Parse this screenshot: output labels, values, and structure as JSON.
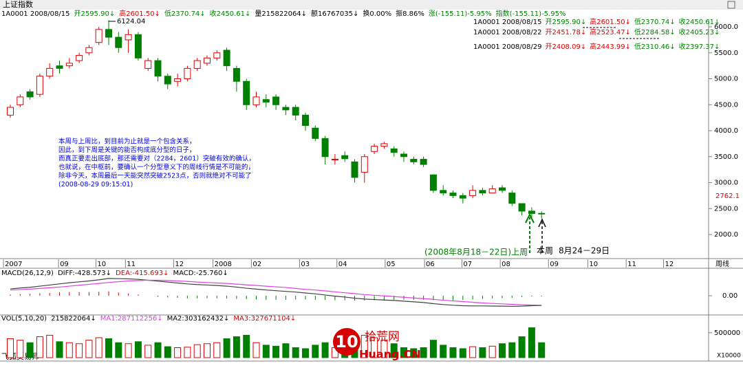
{
  "chart_data": {
    "type": "candlestick",
    "title": "上证指数",
    "header": [
      {
        "text": "1A0001 2008/08/15",
        "color": "#000000"
      },
      {
        "text": "开2595.90↓",
        "color": "#008000"
      },
      {
        "text": "高2601.50↓",
        "color": "#e00000"
      },
      {
        "text": "低2370.74↓",
        "color": "#008000"
      },
      {
        "text": "收2450.61↓",
        "color": "#008000"
      },
      {
        "text": "量215822064↓",
        "color": "#000000"
      },
      {
        "text": "额16767035↓",
        "color": "#000000"
      },
      {
        "text": "换0.00%",
        "color": "#000000"
      },
      {
        "text": "振8.86%",
        "color": "#000000"
      },
      {
        "text": "涨(-155.11)-5.95%",
        "color": "#008000"
      },
      {
        "text": "指数(-155.11)-5.95%",
        "color": "#008000"
      }
    ],
    "info_rows": [
      [
        {
          "text": "1A0001 2008/08/15",
          "color": "#000000"
        },
        {
          "text": "开2595.90↓",
          "color": "#008000"
        },
        {
          "text": "高2601.50↓",
          "color": "#e00000"
        },
        {
          "text": "低2370.74↓",
          "color": "#008000"
        },
        {
          "text": "收2450.61↓",
          "color": "#008000"
        }
      ],
      [
        {
          "text": "1A0001 2008/08/22",
          "color": "#000000"
        },
        {
          "text": "开2451.78↓",
          "color": "#e00000"
        },
        {
          "text": "高2523.47↓",
          "color": "#e00000"
        },
        {
          "text": "低2284.58↓",
          "color": "#008000"
        },
        {
          "text": "收2405.23↓",
          "color": "#008000"
        }
      ],
      [
        {
          "text": "1A0001 2008/08/29",
          "color": "#000000"
        },
        {
          "text": "开2408.09↓",
          "color": "#e00000"
        },
        {
          "text": "高2443.99↓",
          "color": "#e00000"
        },
        {
          "text": "低2310.46↓",
          "color": "#008000"
        },
        {
          "text": "收2397.37↓",
          "color": "#008000"
        }
      ]
    ],
    "categories": [
      null,
      null,
      null,
      null,
      null,
      null,
      null,
      null,
      null,
      null,
      null,
      null,
      null,
      null,
      null,
      null,
      null,
      null,
      null,
      null,
      null,
      null,
      null,
      null,
      null,
      null,
      null,
      null,
      null,
      null,
      null,
      null,
      null,
      null,
      null,
      null,
      null,
      null,
      null,
      null,
      null,
      null,
      null,
      null,
      null,
      null,
      null,
      null,
      null,
      null,
      null,
      null,
      null,
      null,
      null
    ],
    "open": [
      4300,
      4500,
      4750,
      4700,
      5050,
      5250,
      5250,
      5350,
      5500,
      5700,
      5950,
      5800,
      5750,
      5850,
      5200,
      5350,
      5050,
      4950,
      5000,
      5200,
      5300,
      5400,
      5550,
      5200,
      4950,
      4500,
      4600,
      4650,
      4450,
      4450,
      4300,
      4050,
      3850,
      3450,
      3520,
      3400,
      3200,
      3600,
      3700,
      3650,
      3550,
      3450,
      3450,
      3150,
      2850,
      2800,
      2750,
      2750,
      2850,
      2800,
      2900,
      2800,
      2595.9,
      2451.78,
      2408.09
    ],
    "high": [
      4500,
      4700,
      4800,
      5100,
      5300,
      5350,
      5400,
      5500,
      5650,
      6000,
      6124.04,
      5900,
      5950,
      5900,
      5400,
      5400,
      5100,
      5100,
      5250,
      5400,
      5450,
      5550,
      5600,
      5250,
      5000,
      4750,
      4700,
      4700,
      4500,
      4500,
      4350,
      4100,
      3900,
      3550,
      3600,
      3450,
      3550,
      3750,
      3786,
      3700,
      3600,
      3500,
      3500,
      3150,
      2950,
      2850,
      2800,
      2950,
      2900,
      2950,
      2950,
      2850,
      2601.5,
      2523.47,
      2443.99
    ],
    "low": [
      4250,
      4450,
      4600,
      4650,
      5000,
      5100,
      5200,
      5300,
      5450,
      5650,
      5650,
      5500,
      5500,
      5350,
      5150,
      4950,
      4800,
      4850,
      4950,
      5150,
      5250,
      5350,
      5150,
      4750,
      4400,
      4450,
      4450,
      4400,
      4300,
      4200,
      4000,
      3800,
      3350,
      3350,
      3400,
      3000,
      3000,
      3550,
      3650,
      3500,
      3400,
      3350,
      3300,
      2800,
      2750,
      2700,
      2600,
      2700,
      2750,
      2800,
      2800,
      2550,
      2370.74,
      2284.58,
      2310.46
    ],
    "close": [
      4450,
      4650,
      4650,
      5050,
      5200,
      5200,
      5300,
      5450,
      5600,
      5950,
      5800,
      5600,
      5850,
      5400,
      5350,
      5050,
      4900,
      5000,
      5200,
      5350,
      5400,
      5500,
      5250,
      4950,
      4500,
      4650,
      4550,
      4500,
      4400,
      4300,
      4100,
      3850,
      3500,
      3450,
      3460,
      3100,
      3500,
      3700,
      3750,
      3580,
      3500,
      3400,
      3350,
      2850,
      2800,
      2750,
      2700,
      2850,
      2800,
      2880,
      2850,
      2600,
      2450.61,
      2405.23,
      2397.37
    ],
    "up_color": "#e00000",
    "down_color": "#008000",
    "ylim": [
      1550,
      6146
    ],
    "yticks": [
      {
        "value": 2000,
        "label": "2000.0"
      },
      {
        "value": 2500,
        "label": "2500.0"
      },
      {
        "value": 3000,
        "label": "3000.0"
      },
      {
        "value": 3500,
        "label": "3500.0"
      },
      {
        "value": 4000,
        "label": "4000.0"
      },
      {
        "value": 4500,
        "label": "4500.0"
      },
      {
        "value": 5000,
        "label": "5000.0"
      },
      {
        "value": 5500,
        "label": "5500.0"
      },
      {
        "value": 6000,
        "label": "6000.0"
      }
    ],
    "xticks": [
      {
        "value": -0.7,
        "label": "2007"
      },
      {
        "value": 4.9,
        "label": "09"
      },
      {
        "value": 8.7,
        "label": "10"
      },
      {
        "value": 11.7,
        "label": "11"
      },
      {
        "value": 16.6,
        "label": "12"
      },
      {
        "value": 20.6,
        "label": "2008"
      },
      {
        "value": 24.5,
        "label": "02"
      },
      {
        "value": 29.4,
        "label": "03"
      },
      {
        "value": 33.2,
        "label": "04"
      },
      {
        "value": 38.1,
        "label": "05"
      },
      {
        "value": 42.1,
        "label": "06"
      },
      {
        "value": 45.9,
        "label": "07"
      },
      {
        "value": 49.8,
        "label": "08"
      },
      {
        "value": 54.7,
        "label": "09"
      },
      {
        "value": 58.7,
        "label": "10"
      },
      {
        "value": 62.6,
        "label": "11"
      },
      {
        "value": 66.4,
        "label": "12"
      }
    ],
    "period_label": "周线",
    "grid": false,
    "peak_label": "6124.04",
    "last_price_label": "2762.1",
    "note_lines": [
      "本周与上周比，到目前为止就是一个包含关系，",
      "因此，到下周是关键的能否构成底分型的日子，",
      "而真正要走出底部，那还需要对（2284，2601）突破有效的确认，",
      "也就说，在中枢前，要确认一个分型意义下的周线行情是不可能的，",
      "除非今天，本周最后一天能突然突破2523点，否则就绝对不可能了",
      "(2008-08-29 09:15:01)"
    ],
    "last_week_label": "(2008年8月18－22日)上周",
    "this_week_label": "本周",
    "this_week_dates": "8月24－29日",
    "macd": {
      "header": [
        {
          "text": "MACD(26,12,9)",
          "color": "#000000"
        },
        {
          "text": "DIFF:-428.573↓",
          "color": "#000000"
        },
        {
          "text": "DEA:-415.693↓",
          "color": "#e00000"
        },
        {
          "text": "MACD:-25.760↓",
          "color": "#000000"
        }
      ],
      "ylim": [
        -850,
        1150
      ],
      "yticks": [
        {
          "value": 0,
          "label": "0.00"
        }
      ],
      "series": [
        {
          "name": "DIFF",
          "color": "#404040",
          "values": [
            300,
            340,
            370,
            420,
            470,
            520,
            570,
            610,
            650,
            700,
            760,
            750,
            740,
            720,
            680,
            640,
            600,
            560,
            520,
            490,
            470,
            450,
            420,
            380,
            330,
            290,
            250,
            220,
            190,
            160,
            120,
            80,
            30,
            -20,
            -60,
            -110,
            -150,
            -170,
            -190,
            -210,
            -240,
            -270,
            -300,
            -350,
            -390,
            -420,
            -440,
            -450,
            -450,
            -455,
            -460,
            -470,
            -460,
            -440,
            -428.573
          ]
        },
        {
          "name": "DEA",
          "color": "#e040e0",
          "values": [
            250,
            270,
            290,
            320,
            350,
            380,
            420,
            460,
            500,
            540,
            580,
            620,
            650,
            670,
            680,
            680,
            670,
            650,
            630,
            600,
            580,
            560,
            540,
            510,
            480,
            450,
            420,
            390,
            360,
            320,
            280,
            250,
            210,
            170,
            130,
            90,
            50,
            20,
            -10,
            -40,
            -70,
            -100,
            -130,
            -160,
            -200,
            -230,
            -260,
            -290,
            -320,
            -340,
            -360,
            -380,
            -400,
            -410,
            -415.693
          ]
        }
      ],
      "bars": [
        50,
        70,
        80,
        100,
        120,
        140,
        150,
        150,
        150,
        160,
        180,
        130,
        90,
        50,
        0,
        -40,
        -70,
        -90,
        -110,
        -110,
        -110,
        -110,
        -120,
        -130,
        -150,
        -160,
        -170,
        -170,
        -170,
        -160,
        -160,
        -170,
        -180,
        -190,
        -190,
        -200,
        -200,
        -190,
        -180,
        -170,
        -170,
        -170,
        -170,
        -190,
        -190,
        -190,
        -180,
        -160,
        -130,
        -115,
        -100,
        -90,
        -60,
        -30,
        -25.76
      ]
    },
    "volume": {
      "header": [
        {
          "text": "VOL(5,10,20)",
          "color": "#000000"
        },
        {
          "text": "215822064↓",
          "color": "#000000"
        },
        {
          "text": "MA1:287112256↓",
          "color": "#e040e0"
        },
        {
          "text": "MA2:303162432↓",
          "color": "#000000"
        },
        {
          "text": "MA3:327671104↓",
          "color": "#e00000"
        }
      ],
      "ylim": [
        0,
        760000
      ],
      "yticks": [
        500000
      ],
      "values": [
        380000,
        350000,
        300000,
        420000,
        450000,
        320000,
        300000,
        280000,
        350000,
        400000,
        380000,
        300000,
        280000,
        320000,
        250000,
        300000,
        220000,
        200000,
        210000,
        260000,
        280000,
        300000,
        380000,
        420000,
        450000,
        300000,
        250000,
        230000,
        280000,
        200000,
        180000,
        250000,
        300000,
        200000,
        240000,
        280000,
        450000,
        400000,
        350000,
        280000,
        200000,
        180000,
        200000,
        350000,
        250000,
        200000,
        180000,
        220000,
        200000,
        230000,
        280000,
        300000,
        420000,
        600000,
        300000
      ],
      "unit_label": "X10000"
    },
    "software_label": "飞狐交易师",
    "watermark": {
      "number": "10",
      "name": "拾荒网",
      "site": "Huang.CN"
    }
  }
}
